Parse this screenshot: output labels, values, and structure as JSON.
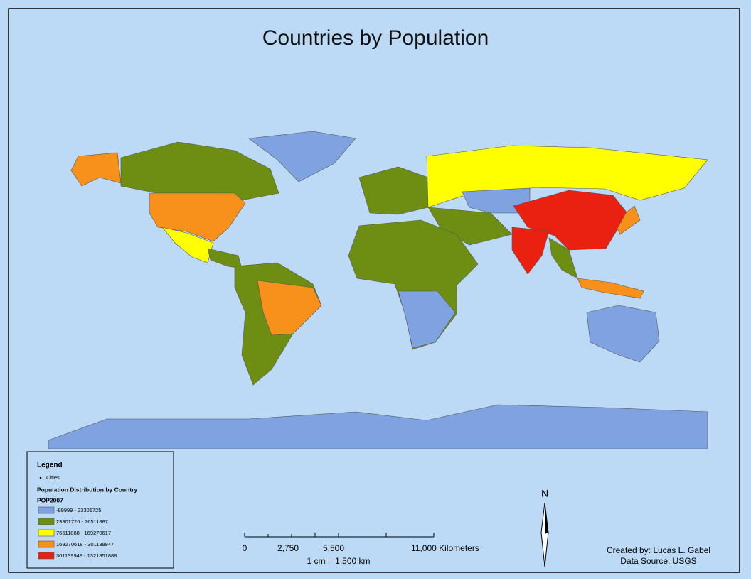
{
  "title": "Countries by Population",
  "legend": {
    "heading": "Legend",
    "cities_label": "Cities",
    "group_title": "Population Distribution by Country",
    "field": "POP2007",
    "classes": [
      {
        "label": "-99999 - 23301725",
        "color": "#7ea3e0"
      },
      {
        "label": "23301726 - 76511887",
        "color": "#6e8e13"
      },
      {
        "label": "76511888 - 169270617",
        "color": "#ffff00"
      },
      {
        "label": "169270618 - 301139947",
        "color": "#f8901c"
      },
      {
        "label": "301139948 - 1321851888",
        "color": "#ea2010"
      }
    ]
  },
  "scale_bar": {
    "ticks": [
      "0",
      "2,750",
      "5,500",
      "11,000 Kilometers"
    ],
    "ratio": "1 cm = 1,500 km"
  },
  "north_arrow": "N",
  "credits": {
    "author": "Created by: Lucas L. Gabel",
    "source": "Data Source: USGS"
  }
}
